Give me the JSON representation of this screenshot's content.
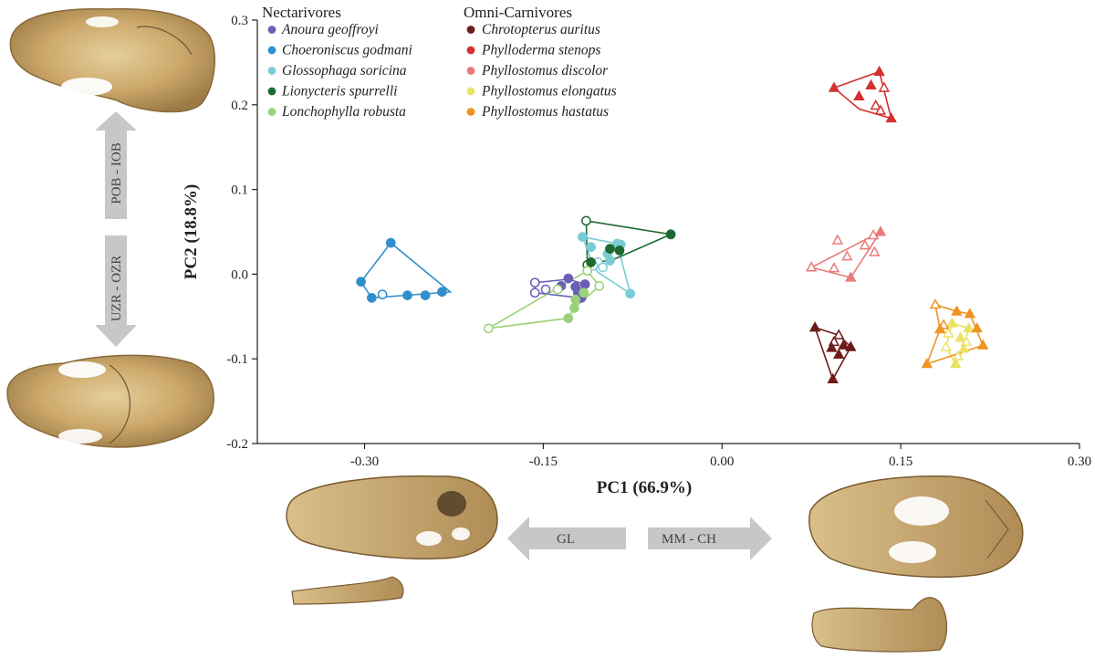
{
  "chart_data": {
    "type": "scatter",
    "title": "",
    "xlabel": "PC1 (66.9%)",
    "ylabel": "PC2 (18.8%)",
    "xlim": [
      -0.39,
      0.3
    ],
    "ylim": [
      -0.2,
      0.3
    ],
    "xticks": [
      -0.3,
      -0.15,
      0.0,
      0.15,
      0.3
    ],
    "xtick_labels": [
      "-0.30",
      "-0.15",
      "0.00",
      "0.15",
      "0.30"
    ],
    "yticks": [
      -0.2,
      -0.1,
      0.0,
      0.1,
      0.2,
      0.3
    ],
    "ytick_labels": [
      "-0.2",
      "-0.1",
      "0.0",
      "0.1",
      "0.2",
      "0.3"
    ],
    "grid": false,
    "legend_groups": [
      {
        "name": "Nectarivores",
        "placement": "top-left",
        "entries": [
          "Anoura geoffroyi",
          "Choeroniscus godmani",
          "Glossophaga soricina",
          "Lionycteris spurrelli",
          "Lonchophylla robusta"
        ]
      },
      {
        "name": "Omni-Carnivores",
        "placement": "top-center",
        "entries": [
          "Chrotopterus auritus",
          "Phylloderma stenops",
          "Phyllostomus discolor",
          "Phyllostomus elongatus",
          "Phyllostomus hastatus"
        ]
      }
    ],
    "series": [
      {
        "name": "Anoura geoffroyi",
        "group": "Nectarivores",
        "marker": "circle",
        "color": "#6b5fb5",
        "hull": [
          [
            -0.118,
            -0.016
          ],
          [
            -0.115,
            -0.012
          ],
          [
            -0.129,
            -0.006
          ],
          [
            -0.157,
            -0.01
          ],
          [
            -0.157,
            -0.022
          ],
          [
            -0.118,
            -0.028
          ]
        ],
        "points": [
          [
            -0.129,
            -0.005
          ],
          [
            -0.123,
            -0.015
          ],
          [
            -0.115,
            -0.012
          ],
          [
            -0.121,
            -0.022
          ],
          [
            -0.118,
            -0.028
          ],
          [
            -0.135,
            -0.014
          ]
        ],
        "open": [
          [
            -0.157,
            -0.01
          ],
          [
            -0.157,
            -0.022
          ],
          [
            -0.148,
            -0.018
          ]
        ]
      },
      {
        "name": "Choeroniscus godmani",
        "group": "Nectarivores",
        "marker": "circle",
        "color": "#3190cc",
        "hull": [
          [
            -0.278,
            0.037
          ],
          [
            -0.228,
            -0.021
          ],
          [
            -0.294,
            -0.028
          ],
          [
            -0.303,
            -0.009
          ]
        ],
        "points": [
          [
            -0.278,
            0.037
          ],
          [
            -0.303,
            -0.009
          ],
          [
            -0.294,
            -0.028
          ],
          [
            -0.264,
            -0.025
          ],
          [
            -0.249,
            -0.025
          ],
          [
            -0.235,
            -0.021
          ]
        ],
        "open": [
          [
            -0.285,
            -0.024
          ]
        ]
      },
      {
        "name": "Glossophaga soricina",
        "group": "Nectarivores",
        "marker": "circle",
        "color": "#79ccd5",
        "hull": [
          [
            -0.088,
            0.036
          ],
          [
            -0.077,
            -0.023
          ],
          [
            -0.104,
            0.002
          ],
          [
            -0.108,
            0.01
          ],
          [
            -0.117,
            0.044
          ]
        ],
        "points": [
          [
            -0.117,
            0.044
          ],
          [
            -0.11,
            0.032
          ],
          [
            -0.088,
            0.036
          ],
          [
            -0.096,
            0.024
          ],
          [
            -0.085,
            0.035
          ],
          [
            -0.094,
            0.016
          ],
          [
            -0.077,
            -0.023
          ]
        ],
        "open": [
          [
            -0.104,
            0.014
          ],
          [
            -0.1,
            0.008
          ],
          [
            -0.108,
            0.01
          ]
        ]
      },
      {
        "name": "Lionycteris spurrelli",
        "group": "Nectarivores",
        "marker": "circle",
        "color": "#1c6a32",
        "hull": [
          [
            -0.114,
            0.063
          ],
          [
            -0.043,
            0.047
          ],
          [
            -0.09,
            0.018
          ],
          [
            -0.113,
            0.011
          ]
        ],
        "points": [
          [
            -0.043,
            0.047
          ],
          [
            -0.094,
            0.03
          ],
          [
            -0.086,
            0.028
          ],
          [
            -0.11,
            0.014
          ]
        ],
        "open": [
          [
            -0.114,
            0.063
          ],
          [
            -0.113,
            0.011
          ]
        ]
      },
      {
        "name": "Lonchophylla robusta",
        "group": "Nectarivores",
        "marker": "circle",
        "color": "#9bd17a",
        "hull": [
          [
            -0.113,
            0.004
          ],
          [
            -0.103,
            -0.014
          ],
          [
            -0.124,
            -0.04
          ],
          [
            -0.129,
            -0.052
          ],
          [
            -0.196,
            -0.064
          ]
        ],
        "points": [
          [
            -0.123,
            -0.03
          ],
          [
            -0.124,
            -0.04
          ],
          [
            -0.129,
            -0.052
          ],
          [
            -0.116,
            -0.022
          ]
        ],
        "open": [
          [
            -0.196,
            -0.064
          ],
          [
            -0.113,
            0.004
          ],
          [
            -0.103,
            -0.014
          ],
          [
            -0.138,
            -0.018
          ]
        ]
      },
      {
        "name": "Chrotopterus auritus",
        "group": "Omni-Carnivores",
        "marker": "triangle",
        "color": "#6e1b1b",
        "hull": [
          [
            0.078,
            -0.063
          ],
          [
            0.098,
            -0.072
          ],
          [
            0.108,
            -0.086
          ],
          [
            0.093,
            -0.124
          ]
        ],
        "points": [
          [
            0.078,
            -0.063
          ],
          [
            0.093,
            -0.124
          ],
          [
            0.108,
            -0.086
          ],
          [
            0.092,
            -0.087
          ],
          [
            0.102,
            -0.084
          ],
          [
            0.098,
            -0.095
          ]
        ],
        "open": [
          [
            0.098,
            -0.072
          ],
          [
            0.094,
            -0.08
          ]
        ]
      },
      {
        "name": "Phylloderma stenops",
        "group": "Omni-Carnivores",
        "marker": "triangle",
        "color": "#d33030",
        "hull": [
          [
            0.094,
            0.22
          ],
          [
            0.132,
            0.239
          ],
          [
            0.142,
            0.184
          ],
          [
            0.115,
            0.195
          ]
        ],
        "points": [
          [
            0.094,
            0.22
          ],
          [
            0.132,
            0.239
          ],
          [
            0.142,
            0.184
          ],
          [
            0.115,
            0.21
          ],
          [
            0.125,
            0.223
          ]
        ],
        "open": [
          [
            0.136,
            0.22
          ],
          [
            0.129,
            0.199
          ],
          [
            0.133,
            0.193
          ]
        ]
      },
      {
        "name": "Phyllostomus discolor",
        "group": "Omni-Carnivores",
        "marker": "triangle",
        "color": "#e87b7b",
        "hull": [
          [
            0.075,
            0.008
          ],
          [
            0.133,
            0.05
          ],
          [
            0.108,
            -0.004
          ]
        ],
        "points": [
          [
            0.133,
            0.05
          ],
          [
            0.108,
            -0.004
          ]
        ],
        "open": [
          [
            0.075,
            0.008
          ],
          [
            0.097,
            0.04
          ],
          [
            0.127,
            0.046
          ],
          [
            0.12,
            0.034
          ],
          [
            0.128,
            0.026
          ],
          [
            0.105,
            0.021
          ],
          [
            0.094,
            0.007
          ]
        ]
      },
      {
        "name": "Phyllostomus elongatus",
        "group": "Omni-Carnivores",
        "marker": "triangle",
        "color": "#ece262",
        "hull": [
          [
            0.193,
            -0.058
          ],
          [
            0.207,
            -0.064
          ],
          [
            0.203,
            -0.088
          ],
          [
            0.196,
            -0.106
          ],
          [
            0.188,
            -0.086
          ]
        ],
        "points": [
          [
            0.193,
            -0.058
          ],
          [
            0.207,
            -0.064
          ],
          [
            0.2,
            -0.075
          ],
          [
            0.203,
            -0.088
          ],
          [
            0.196,
            -0.106
          ]
        ],
        "open": [
          [
            0.19,
            -0.07
          ],
          [
            0.188,
            -0.086
          ],
          [
            0.198,
            -0.097
          ],
          [
            0.205,
            -0.08
          ]
        ]
      },
      {
        "name": "Phyllostomus hastatus",
        "group": "Omni-Carnivores",
        "marker": "triangle",
        "color": "#ef9324",
        "hull": [
          [
            0.179,
            -0.036
          ],
          [
            0.197,
            -0.044
          ],
          [
            0.208,
            -0.047
          ],
          [
            0.219,
            -0.084
          ],
          [
            0.172,
            -0.106
          ],
          [
            0.183,
            -0.065
          ]
        ],
        "points": [
          [
            0.197,
            -0.044
          ],
          [
            0.208,
            -0.047
          ],
          [
            0.214,
            -0.064
          ],
          [
            0.219,
            -0.084
          ],
          [
            0.172,
            -0.106
          ],
          [
            0.183,
            -0.065
          ]
        ],
        "open": [
          [
            0.179,
            -0.036
          ],
          [
            0.186,
            -0.06
          ]
        ]
      }
    ],
    "arrows": [
      {
        "label": "POB - IOB",
        "direction": "up"
      },
      {
        "label": "UZR - OZR",
        "direction": "down"
      },
      {
        "label": "GL",
        "direction": "left"
      },
      {
        "label": "MM - CH",
        "direction": "right"
      }
    ]
  }
}
